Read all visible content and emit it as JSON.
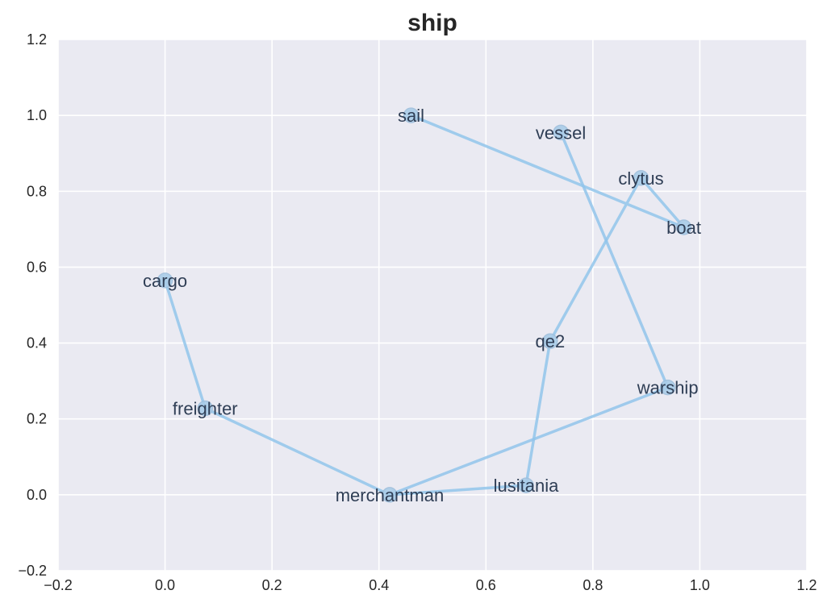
{
  "chart_data": {
    "type": "line",
    "title": "ship",
    "xlabel": "",
    "ylabel": "",
    "xlim": [
      -0.2,
      1.2
    ],
    "ylim": [
      -0.2,
      1.2
    ],
    "xticks": [
      "−0.2",
      "0.0",
      "0.2",
      "0.4",
      "0.6",
      "0.8",
      "1.0",
      "1.2"
    ],
    "yticks": [
      "−0.2",
      "0.0",
      "0.2",
      "0.4",
      "0.6",
      "0.8",
      "1.0",
      "1.2"
    ],
    "grid": true,
    "colors": {
      "background": "#eaeaf2",
      "grid": "#ffffff",
      "series": "#92c5eb",
      "label": "#2f3e55"
    },
    "points": [
      {
        "label": "cargo",
        "x": 0.0,
        "y": 0.565
      },
      {
        "label": "freighter",
        "x": 0.075,
        "y": 0.228
      },
      {
        "label": "merchantman",
        "x": 0.42,
        "y": 0.0
      },
      {
        "label": "lusitania",
        "x": 0.675,
        "y": 0.025
      },
      {
        "label": "qe2",
        "x": 0.72,
        "y": 0.405
      },
      {
        "label": "clytus",
        "x": 0.89,
        "y": 0.835
      },
      {
        "label": "boat",
        "x": 0.97,
        "y": 0.705
      },
      {
        "label": "sail",
        "x": 0.46,
        "y": 1.0
      },
      {
        "label": "vessel",
        "x": 0.74,
        "y": 0.955
      },
      {
        "label": "warship",
        "x": 0.94,
        "y": 0.283
      }
    ],
    "path_order": [
      "cargo",
      "freighter",
      "merchantman",
      "lusitania",
      "qe2",
      "clytus",
      "boat",
      "sail"
    ],
    "extra_segments": [
      [
        "merchantman",
        "warship"
      ],
      [
        "warship",
        "vessel"
      ]
    ]
  }
}
